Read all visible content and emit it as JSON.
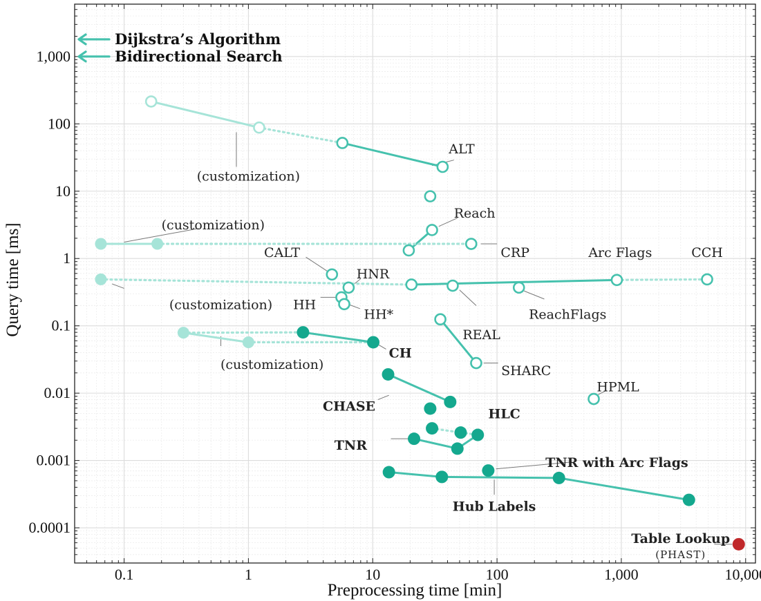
{
  "chart_data": {
    "type": "scatter",
    "xscale": "log",
    "yscale": "log",
    "xlabel": "Preprocessing time [min]",
    "ylabel": "Query time [ms]",
    "xlim": [
      0.04,
      12000
    ],
    "ylim": [
      3e-05,
      6000
    ],
    "grid": true,
    "x_ticks": [
      {
        "value": 0.1,
        "label": "0.1"
      },
      {
        "value": 1,
        "label": "1"
      },
      {
        "value": 10,
        "label": "10"
      },
      {
        "value": 100,
        "label": "100"
      },
      {
        "value": 1000,
        "label": "1,000"
      },
      {
        "value": 10000,
        "label": "10,000"
      }
    ],
    "y_ticks": [
      {
        "value": 0.0001,
        "label": "0.0001"
      },
      {
        "value": 0.001,
        "label": "0.001"
      },
      {
        "value": 0.01,
        "label": "0.01"
      },
      {
        "value": 0.1,
        "label": "0.1"
      },
      {
        "value": 1,
        "label": "1"
      },
      {
        "value": 10,
        "label": "10"
      },
      {
        "value": 100,
        "label": "100"
      },
      {
        "value": 1000,
        "label": "1,000"
      }
    ],
    "colors": {
      "main": "#45c1ad",
      "filled": "#14a88e",
      "light": "#a6e4d8",
      "table_lookup": "#c0282a",
      "leader": "#777777",
      "grid_major": "#dcdcdc",
      "grid_minor": "#ececec"
    },
    "axis_arrows": [
      {
        "label": "Dijkstra’s Algorithm",
        "y": 1800
      },
      {
        "label": "Bidirectional Search",
        "y": 1000
      }
    ],
    "segments": [
      {
        "points": [
          [
            0.165,
            215
          ],
          [
            1.22,
            88
          ]
        ],
        "style": "light"
      },
      {
        "points": [
          [
            1.22,
            88
          ],
          [
            5.7,
            52
          ]
        ],
        "style": "dotted"
      },
      {
        "points": [
          [
            5.7,
            52
          ],
          [
            36.5,
            23
          ]
        ],
        "style": "solid"
      },
      {
        "points": [
          [
            19.5,
            1.32
          ],
          [
            30,
            2.65
          ]
        ],
        "style": "solid"
      },
      {
        "points": [
          [
            0.065,
            1.65
          ],
          [
            0.185,
            1.65
          ]
        ],
        "style": "light"
      },
      {
        "points": [
          [
            0.185,
            1.65
          ],
          [
            62,
            1.65
          ]
        ],
        "style": "dotted"
      },
      {
        "points": [
          [
            0.065,
            0.49
          ],
          [
            20.5,
            0.41
          ]
        ],
        "style": "dotted"
      },
      {
        "points": [
          [
            20.5,
            0.41
          ],
          [
            920,
            0.48
          ]
        ],
        "style": "solid"
      },
      {
        "points": [
          [
            920,
            0.48
          ],
          [
            4900,
            0.49
          ]
        ],
        "style": "dotted"
      },
      {
        "points": [
          [
            35,
            0.125
          ],
          [
            68,
            0.028
          ]
        ],
        "style": "solid"
      },
      {
        "points": [
          [
            0.3,
            0.079
          ],
          [
            1.0,
            0.057
          ]
        ],
        "style": "light"
      },
      {
        "points": [
          [
            0.3,
            0.079
          ],
          [
            2.75,
            0.08
          ]
        ],
        "style": "dotted"
      },
      {
        "points": [
          [
            1.0,
            0.057
          ],
          [
            10.1,
            0.057
          ]
        ],
        "style": "dotted"
      },
      {
        "points": [
          [
            2.75,
            0.08
          ],
          [
            10.1,
            0.057
          ]
        ],
        "style": "solid"
      },
      {
        "points": [
          [
            13.3,
            0.019
          ],
          [
            42,
            0.0074
          ]
        ],
        "style": "solid"
      },
      {
        "points": [
          [
            30,
            0.003
          ],
          [
            51,
            0.0026
          ]
        ],
        "style": "dotted"
      },
      {
        "points": [
          [
            51,
            0.0026
          ],
          [
            70,
            0.0024
          ]
        ],
        "style": "dotted"
      },
      {
        "points": [
          [
            21.5,
            0.0021
          ],
          [
            48,
            0.0015
          ]
        ],
        "style": "solid"
      },
      {
        "points": [
          [
            48,
            0.0015
          ],
          [
            70,
            0.0024
          ]
        ],
        "style": "solid"
      },
      {
        "points": [
          [
            13.5,
            0.00067
          ],
          [
            36,
            0.00057
          ]
        ],
        "style": "solid"
      },
      {
        "points": [
          [
            36,
            0.00057
          ],
          [
            315,
            0.00055
          ]
        ],
        "style": "solid"
      },
      {
        "points": [
          [
            315,
            0.00055
          ],
          [
            3500,
            0.00026
          ]
        ],
        "style": "solid"
      }
    ],
    "points": [
      {
        "x": 0.165,
        "y": 215,
        "style": "open-light"
      },
      {
        "x": 1.22,
        "y": 88,
        "style": "open-light"
      },
      {
        "x": 5.7,
        "y": 52,
        "style": "open"
      },
      {
        "x": 36.5,
        "y": 23,
        "style": "open"
      },
      {
        "x": 29,
        "y": 8.4,
        "style": "open"
      },
      {
        "x": 30,
        "y": 2.65,
        "style": "open"
      },
      {
        "x": 19.5,
        "y": 1.32,
        "style": "open"
      },
      {
        "x": 62,
        "y": 1.65,
        "style": "open"
      },
      {
        "x": 0.065,
        "y": 1.65,
        "style": "filled-light"
      },
      {
        "x": 0.185,
        "y": 1.65,
        "style": "filled-light"
      },
      {
        "x": 4.7,
        "y": 0.58,
        "style": "open"
      },
      {
        "x": 6.4,
        "y": 0.37,
        "style": "open"
      },
      {
        "x": 5.6,
        "y": 0.265,
        "style": "open"
      },
      {
        "x": 5.9,
        "y": 0.21,
        "style": "open"
      },
      {
        "x": 20.5,
        "y": 0.41,
        "style": "open"
      },
      {
        "x": 44,
        "y": 0.395,
        "style": "open"
      },
      {
        "x": 150,
        "y": 0.37,
        "style": "open"
      },
      {
        "x": 920,
        "y": 0.48,
        "style": "open"
      },
      {
        "x": 4900,
        "y": 0.49,
        "style": "open"
      },
      {
        "x": 0.065,
        "y": 0.49,
        "style": "filled-light"
      },
      {
        "x": 35,
        "y": 0.125,
        "style": "open"
      },
      {
        "x": 68,
        "y": 0.028,
        "style": "open"
      },
      {
        "x": 600,
        "y": 0.0082,
        "style": "open"
      },
      {
        "x": 0.3,
        "y": 0.079,
        "style": "filled-light"
      },
      {
        "x": 1.0,
        "y": 0.057,
        "style": "filled-light"
      },
      {
        "x": 2.75,
        "y": 0.08,
        "style": "filled"
      },
      {
        "x": 10.1,
        "y": 0.057,
        "style": "filled"
      },
      {
        "x": 13.3,
        "y": 0.019,
        "style": "filled"
      },
      {
        "x": 42,
        "y": 0.0074,
        "style": "filled"
      },
      {
        "x": 29,
        "y": 0.0059,
        "style": "filled"
      },
      {
        "x": 30,
        "y": 0.003,
        "style": "filled"
      },
      {
        "x": 51,
        "y": 0.0026,
        "style": "filled"
      },
      {
        "x": 70,
        "y": 0.0024,
        "style": "filled"
      },
      {
        "x": 21.5,
        "y": 0.0021,
        "style": "filled"
      },
      {
        "x": 48,
        "y": 0.0015,
        "style": "filled"
      },
      {
        "x": 85,
        "y": 0.00071,
        "style": "filled"
      },
      {
        "x": 13.5,
        "y": 0.00067,
        "style": "filled"
      },
      {
        "x": 36,
        "y": 0.00057,
        "style": "filled"
      },
      {
        "x": 315,
        "y": 0.00055,
        "style": "filled"
      },
      {
        "x": 3500,
        "y": 0.00026,
        "style": "filled"
      },
      {
        "x": 8800,
        "y": 5.7e-05,
        "style": "red"
      }
    ],
    "annotations": [
      {
        "text": "ALT",
        "x": 52,
        "y": 43,
        "anchor": "middle",
        "weight": "normal",
        "leader": [
          [
            45,
            29
          ],
          [
            30,
            24
          ]
        ]
      },
      {
        "text": "(customization)",
        "x": 1.0,
        "y": 17,
        "anchor": "middle",
        "weight": "normal",
        "leader": [
          [
            0.8,
            23
          ],
          [
            0.8,
            75
          ]
        ]
      },
      {
        "text": "Reach",
        "x": 45,
        "y": 4.8,
        "anchor": "start",
        "weight": "normal",
        "leader": [
          [
            48,
            4
          ],
          [
            34,
            3
          ]
        ]
      },
      {
        "text": "(customization)",
        "x": 0.52,
        "y": 3.2,
        "anchor": "middle",
        "weight": "normal",
        "leader": [
          [
            0.4,
            2.8
          ],
          [
            0.1,
            1.75
          ]
        ]
      },
      {
        "text": "CRP",
        "x": 107,
        "y": 1.25,
        "anchor": "start",
        "weight": "normal",
        "leader": [
          [
            74,
            1.65
          ],
          [
            100,
            1.65
          ]
        ]
      },
      {
        "text": "CALT",
        "x": 2.6,
        "y": 1.25,
        "anchor": "end",
        "weight": "normal",
        "leader": [
          [
            2.9,
            1.05
          ],
          [
            4.3,
            0.65
          ]
        ]
      },
      {
        "text": "HNR",
        "x": 7.4,
        "y": 0.6,
        "anchor": "start",
        "weight": "normal",
        "leader": [
          [
            8.0,
            0.5
          ],
          [
            6.9,
            0.4
          ]
        ]
      },
      {
        "text": "HH",
        "x": 3.5,
        "y": 0.21,
        "anchor": "end",
        "weight": "normal",
        "leader": [
          [
            3.8,
            0.265
          ],
          [
            5.1,
            0.265
          ]
        ]
      },
      {
        "text": "HH*",
        "x": 8.5,
        "y": 0.15,
        "anchor": "start",
        "weight": "normal",
        "leader": [
          [
            6.3,
            0.21
          ],
          [
            7.9,
            0.18
          ]
        ]
      },
      {
        "text": "Arc Flags",
        "x": 980,
        "y": 1.25,
        "anchor": "middle",
        "weight": "normal",
        "leader": null
      },
      {
        "text": "CCH",
        "x": 4900,
        "y": 1.25,
        "anchor": "middle",
        "weight": "normal",
        "leader": null
      },
      {
        "text": "(customization)",
        "x": 0.6,
        "y": 0.21,
        "anchor": "middle",
        "weight": "normal",
        "leader": [
          [
            0.1,
            0.36
          ],
          [
            0.08,
            0.42
          ]
        ]
      },
      {
        "text": "REAL",
        "x": 75,
        "y": 0.075,
        "anchor": "middle",
        "weight": "normal",
        "leader": [
          [
            50,
            0.34
          ],
          [
            68,
            0.2
          ]
        ]
      },
      {
        "text": "ReachFlags",
        "x": 370,
        "y": 0.15,
        "anchor": "middle",
        "weight": "normal",
        "leader": [
          [
            165,
            0.33
          ],
          [
            240,
            0.25
          ]
        ]
      },
      {
        "text": "(customization)",
        "x": 1.55,
        "y": 0.027,
        "anchor": "middle",
        "weight": "normal",
        "leader": [
          [
            0.6,
            0.05
          ],
          [
            0.6,
            0.07
          ]
        ]
      },
      {
        "text": "CH",
        "x": 13.5,
        "y": 0.04,
        "anchor": "start",
        "weight": "bold",
        "leader": [
          [
            11.2,
            0.052
          ],
          [
            12.8,
            0.045
          ]
        ]
      },
      {
        "text": "SHARC",
        "x": 108,
        "y": 0.022,
        "anchor": "start",
        "weight": "normal",
        "leader": [
          [
            78,
            0.028
          ],
          [
            102,
            0.028
          ]
        ]
      },
      {
        "text": "HPML",
        "x": 940,
        "y": 0.0125,
        "anchor": "middle",
        "weight": "normal",
        "leader": [
          [
            650,
            0.0095
          ],
          [
            760,
            0.011
          ]
        ]
      },
      {
        "text": "CHASE",
        "x": 10.5,
        "y": 0.0065,
        "anchor": "end",
        "weight": "bold",
        "leader": [
          [
            11,
            0.008
          ],
          [
            13.5,
            0.0093
          ]
        ]
      },
      {
        "text": "HLC",
        "x": 85,
        "y": 0.005,
        "anchor": "start",
        "weight": "bold",
        "leader": null
      },
      {
        "text": "TNR",
        "x": 9.0,
        "y": 0.0017,
        "anchor": "end",
        "weight": "bold",
        "leader": [
          [
            14,
            0.0021
          ],
          [
            19.5,
            0.0021
          ]
        ]
      },
      {
        "text": "TNR with Arc Flags",
        "x": 920,
        "y": 0.00095,
        "anchor": "middle",
        "weight": "bold",
        "leader": [
          [
            98,
            0.00075
          ],
          [
            400,
            0.00095
          ]
        ]
      },
      {
        "text": "Hub Labels",
        "x": 95,
        "y": 0.00021,
        "anchor": "middle",
        "weight": "bold",
        "leader": [
          [
            95,
            0.00031
          ],
          [
            95,
            0.00052
          ]
        ]
      },
      {
        "text": "Table Lookup",
        "x": 3000,
        "y": 7e-05,
        "anchor": "middle",
        "weight": "bold",
        "leader": [
          [
            5600,
            5.7e-05
          ],
          [
            7800,
            5.7e-05
          ]
        ]
      },
      {
        "text": "(PHAST)",
        "x": 3000,
        "y": 4.2e-05,
        "anchor": "middle",
        "weight": "small",
        "leader": null
      }
    ]
  }
}
